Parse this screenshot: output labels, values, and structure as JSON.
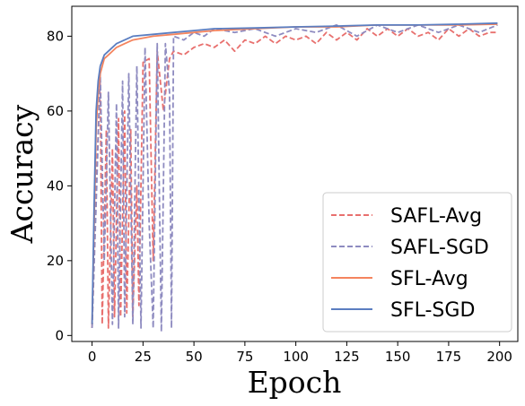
{
  "chart_data": {
    "type": "line",
    "title": "",
    "xlabel": "Epoch",
    "ylabel": "Accuracy",
    "xlim": [
      -9.95,
      208.95
    ],
    "ylim": [
      -1.6,
      88
    ],
    "xticks": [
      0,
      25,
      50,
      75,
      100,
      125,
      150,
      175,
      200
    ],
    "yticks": [
      0,
      20,
      40,
      60,
      80
    ],
    "grid": false,
    "legend_position": "bottom-right",
    "series": [
      {
        "name": "SAFL-Avg",
        "color": "#e8706e",
        "linestyle": "dashed",
        "points": [
          [
            0,
            2
          ],
          [
            2,
            40
          ],
          [
            4,
            68
          ],
          [
            5,
            3
          ],
          [
            7,
            55
          ],
          [
            8,
            2
          ],
          [
            10,
            50
          ],
          [
            11,
            5
          ],
          [
            13,
            58
          ],
          [
            14,
            5
          ],
          [
            16,
            60
          ],
          [
            17,
            6
          ],
          [
            19,
            55
          ],
          [
            20,
            5
          ],
          [
            22,
            40
          ],
          [
            23,
            8
          ],
          [
            25,
            73
          ],
          [
            28,
            74
          ],
          [
            30,
            20
          ],
          [
            32,
            76
          ],
          [
            35,
            60
          ],
          [
            38,
            74
          ],
          [
            40,
            76
          ],
          [
            45,
            75
          ],
          [
            50,
            77
          ],
          [
            55,
            78
          ],
          [
            60,
            77
          ],
          [
            65,
            79
          ],
          [
            70,
            76
          ],
          [
            75,
            79
          ],
          [
            80,
            78
          ],
          [
            85,
            80
          ],
          [
            90,
            78
          ],
          [
            95,
            80
          ],
          [
            100,
            79
          ],
          [
            105,
            80
          ],
          [
            110,
            78
          ],
          [
            115,
            81
          ],
          [
            120,
            79
          ],
          [
            125,
            81
          ],
          [
            130,
            79
          ],
          [
            135,
            82
          ],
          [
            140,
            80
          ],
          [
            145,
            82
          ],
          [
            150,
            80
          ],
          [
            155,
            82
          ],
          [
            160,
            80
          ],
          [
            165,
            81
          ],
          [
            170,
            79
          ],
          [
            175,
            82
          ],
          [
            180,
            80
          ],
          [
            185,
            82
          ],
          [
            190,
            80
          ],
          [
            195,
            81
          ],
          [
            199,
            81
          ]
        ]
      },
      {
        "name": "SAFL-SGD",
        "color": "#8e8bc0",
        "linestyle": "dashed",
        "points": [
          [
            0,
            2
          ],
          [
            2,
            35
          ],
          [
            4,
            70
          ],
          [
            6,
            20
          ],
          [
            8,
            65
          ],
          [
            10,
            3
          ],
          [
            12,
            62
          ],
          [
            13,
            2
          ],
          [
            15,
            68
          ],
          [
            16,
            5
          ],
          [
            18,
            70
          ],
          [
            20,
            3
          ],
          [
            22,
            72
          ],
          [
            24,
            2
          ],
          [
            26,
            77
          ],
          [
            28,
            30
          ],
          [
            30,
            2
          ],
          [
            32,
            78
          ],
          [
            34,
            1
          ],
          [
            36,
            78
          ],
          [
            38,
            65
          ],
          [
            39,
            2
          ],
          [
            40,
            80
          ],
          [
            45,
            79
          ],
          [
            50,
            81
          ],
          [
            55,
            80
          ],
          [
            60,
            82
          ],
          [
            70,
            81
          ],
          [
            80,
            82
          ],
          [
            90,
            80
          ],
          [
            100,
            82
          ],
          [
            110,
            81
          ],
          [
            120,
            83
          ],
          [
            130,
            80
          ],
          [
            140,
            83
          ],
          [
            150,
            81
          ],
          [
            160,
            83
          ],
          [
            170,
            81
          ],
          [
            180,
            83
          ],
          [
            190,
            81
          ],
          [
            199,
            83
          ]
        ]
      },
      {
        "name": "SFL-Avg",
        "color": "#f4845e",
        "linestyle": "solid",
        "points": [
          [
            0,
            3
          ],
          [
            1,
            30
          ],
          [
            2,
            55
          ],
          [
            3,
            65
          ],
          [
            4,
            70
          ],
          [
            6,
            74
          ],
          [
            8,
            75
          ],
          [
            12,
            77
          ],
          [
            16,
            78
          ],
          [
            20,
            79
          ],
          [
            30,
            80
          ],
          [
            40,
            80.5
          ],
          [
            50,
            81
          ],
          [
            60,
            81.5
          ],
          [
            80,
            82
          ],
          [
            100,
            82.5
          ],
          [
            120,
            82.5
          ],
          [
            140,
            83
          ],
          [
            160,
            83
          ],
          [
            180,
            83
          ],
          [
            199,
            83.2
          ]
        ]
      },
      {
        "name": "SFL-SGD",
        "color": "#5b7ec1",
        "linestyle": "solid",
        "points": [
          [
            0,
            3
          ],
          [
            1,
            35
          ],
          [
            2,
            60
          ],
          [
            3,
            68
          ],
          [
            4,
            72
          ],
          [
            6,
            75
          ],
          [
            8,
            76
          ],
          [
            12,
            78
          ],
          [
            16,
            79
          ],
          [
            20,
            80
          ],
          [
            30,
            80.5
          ],
          [
            40,
            81
          ],
          [
            50,
            81.5
          ],
          [
            60,
            82
          ],
          [
            80,
            82.2
          ],
          [
            100,
            82.5
          ],
          [
            120,
            82.7
          ],
          [
            140,
            83
          ],
          [
            160,
            83
          ],
          [
            180,
            83.2
          ],
          [
            199,
            83.5
          ]
        ]
      }
    ]
  }
}
